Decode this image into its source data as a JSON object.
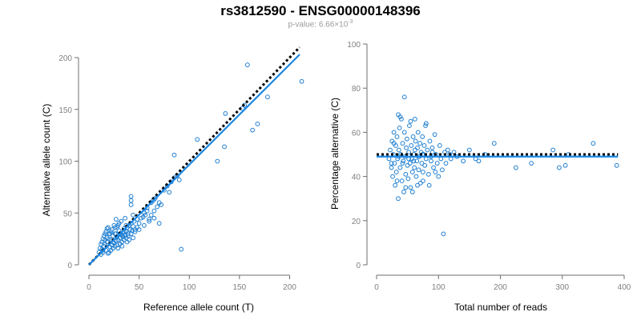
{
  "header": {
    "title": "rs3812590 - ENSG00000148396",
    "pvalue_label": "p-value: 6.66×10",
    "pvalue_exponent": "-3"
  },
  "colors": {
    "points": "#1f7fd1",
    "fit": "#1a87e6",
    "expected": "#000000",
    "axes": "#6e6e6e",
    "ticks": "#808080"
  },
  "chart_data": [
    {
      "type": "scatter",
      "title": "",
      "xlabel": "Reference allele count (T)",
      "ylabel": "Alternative allele count (C)",
      "xlim": [
        0,
        210
      ],
      "ylim": [
        0,
        200
      ],
      "xticks": [
        0,
        50,
        100,
        150,
        200
      ],
      "yticks": [
        0,
        50,
        100,
        150,
        200
      ],
      "fit_line": {
        "x": [
          0,
          210
        ],
        "y": [
          0,
          203
        ]
      },
      "expected_line": {
        "x": [
          0,
          210
        ],
        "y": [
          0,
          210
        ]
      },
      "points": [
        [
          12,
          10
        ],
        [
          13,
          15
        ],
        [
          14,
          12
        ],
        [
          15,
          18
        ],
        [
          16,
          20
        ],
        [
          17,
          14
        ],
        [
          18,
          22
        ],
        [
          19,
          11
        ],
        [
          20,
          25
        ],
        [
          21,
          17
        ],
        [
          22,
          24
        ],
        [
          23,
          19
        ],
        [
          24,
          28
        ],
        [
          25,
          21
        ],
        [
          26,
          30
        ],
        [
          27,
          23
        ],
        [
          28,
          27
        ],
        [
          29,
          16
        ],
        [
          30,
          33
        ],
        [
          31,
          26
        ],
        [
          32,
          29
        ],
        [
          33,
          22
        ],
        [
          34,
          31
        ],
        [
          35,
          35
        ],
        [
          36,
          28
        ],
        [
          37,
          32
        ],
        [
          38,
          36
        ],
        [
          39,
          30
        ],
        [
          40,
          38
        ],
        [
          41,
          34
        ],
        [
          42,
          40
        ],
        [
          43,
          33
        ],
        [
          44,
          37
        ],
        [
          45,
          42
        ],
        [
          12,
          20
        ],
        [
          14,
          25
        ],
        [
          16,
          30
        ],
        [
          18,
          35
        ],
        [
          20,
          12
        ],
        [
          22,
          14
        ],
        [
          24,
          16
        ],
        [
          26,
          18
        ],
        [
          28,
          36
        ],
        [
          30,
          40
        ],
        [
          32,
          42
        ],
        [
          15,
          28
        ],
        [
          17,
          32
        ],
        [
          19,
          36
        ],
        [
          21,
          30
        ],
        [
          23,
          34
        ],
        [
          25,
          38
        ],
        [
          27,
          44
        ],
        [
          29,
          24
        ],
        [
          31,
          20
        ],
        [
          33,
          18
        ],
        [
          35,
          24
        ],
        [
          37,
          26
        ],
        [
          39,
          28
        ],
        [
          13,
          22
        ],
        [
          11,
          16
        ],
        [
          10,
          12
        ],
        [
          18,
          26
        ],
        [
          24,
          22
        ],
        [
          28,
          19
        ],
        [
          34,
          27
        ],
        [
          38,
          22
        ],
        [
          42,
          30
        ],
        [
          46,
          32
        ],
        [
          48,
          36
        ],
        [
          50,
          40
        ],
        [
          52,
          45
        ],
        [
          55,
          50
        ],
        [
          58,
          55
        ],
        [
          60,
          44
        ],
        [
          62,
          48
        ],
        [
          65,
          52
        ],
        [
          68,
          56
        ],
        [
          70,
          60
        ],
        [
          72,
          58
        ],
        [
          42,
          58
        ],
        [
          42,
          62
        ],
        [
          42,
          66
        ],
        [
          50,
          34
        ],
        [
          55,
          38
        ],
        [
          60,
          42
        ],
        [
          56,
          48
        ],
        [
          54,
          46
        ],
        [
          58,
          52
        ],
        [
          62,
          60
        ],
        [
          64,
          62
        ],
        [
          66,
          64
        ],
        [
          70,
          40
        ],
        [
          75,
          72
        ],
        [
          78,
          76
        ],
        [
          80,
          70
        ],
        [
          82,
          80
        ],
        [
          85,
          84
        ],
        [
          88,
          86
        ],
        [
          90,
          82
        ],
        [
          92,
          15
        ],
        [
          65,
          45
        ],
        [
          36,
          45
        ],
        [
          44,
          48
        ],
        [
          48,
          44
        ],
        [
          27,
          30
        ],
        [
          29,
          38
        ],
        [
          31,
          30
        ],
        [
          33,
          28
        ],
        [
          35,
          32
        ],
        [
          37,
          38
        ],
        [
          22,
          32
        ],
        [
          20,
          30
        ],
        [
          16,
          24
        ],
        [
          14,
          14
        ],
        [
          26,
          36
        ],
        [
          40,
          24
        ],
        [
          44,
          26
        ],
        [
          46,
          34
        ],
        [
          85,
          106
        ],
        [
          108,
          121
        ],
        [
          128,
          100
        ],
        [
          135,
          114
        ],
        [
          136,
          146
        ],
        [
          153,
          151
        ],
        [
          155,
          154
        ],
        [
          158,
          193
        ],
        [
          163,
          130
        ],
        [
          168,
          136
        ],
        [
          178,
          162
        ],
        [
          212,
          177
        ]
      ]
    },
    {
      "type": "scatter",
      "title": "",
      "xlabel": "Total number of reads",
      "ylabel": "Percentage alternative (C)",
      "xlim": [
        0,
        400
      ],
      "ylim": [
        0,
        100
      ],
      "xticks": [
        0,
        100,
        200,
        300,
        400
      ],
      "yticks": [
        0,
        20,
        40,
        60,
        80,
        100
      ],
      "fit_line": {
        "x": [
          0,
          390
        ],
        "y": [
          49,
          49
        ]
      },
      "expected_line": {
        "x": [
          0,
          390
        ],
        "y": [
          50,
          50
        ]
      },
      "points": [
        [
          20,
          48
        ],
        [
          22,
          52
        ],
        [
          24,
          44
        ],
        [
          25,
          56
        ],
        [
          26,
          40
        ],
        [
          27,
          50
        ],
        [
          28,
          60
        ],
        [
          29,
          46
        ],
        [
          30,
          36
        ],
        [
          31,
          54
        ],
        [
          32,
          42
        ],
        [
          33,
          58
        ],
        [
          34,
          48
        ],
        [
          35,
          30
        ],
        [
          36,
          52
        ],
        [
          37,
          62
        ],
        [
          38,
          44
        ],
        [
          39,
          50
        ],
        [
          40,
          66
        ],
        [
          41,
          38
        ],
        [
          42,
          55
        ],
        [
          43,
          47
        ],
        [
          44,
          33
        ],
        [
          45,
          60
        ],
        [
          46,
          49
        ],
        [
          47,
          41
        ],
        [
          48,
          53
        ],
        [
          49,
          57
        ],
        [
          50,
          45
        ],
        [
          51,
          39
        ],
        [
          52,
          51
        ],
        [
          53,
          63
        ],
        [
          54,
          46
        ],
        [
          55,
          35
        ],
        [
          56,
          54
        ],
        [
          57,
          48
        ],
        [
          58,
          42
        ],
        [
          59,
          58
        ],
        [
          60,
          50
        ],
        [
          61,
          44
        ],
        [
          62,
          52
        ],
        [
          63,
          56
        ],
        [
          64,
          40
        ],
        [
          65,
          47
        ],
        [
          66,
          53
        ],
        [
          67,
          60
        ],
        [
          68,
          43
        ],
        [
          69,
          49
        ],
        [
          70,
          55
        ],
        [
          71,
          37
        ],
        [
          72,
          51
        ],
        [
          73,
          46
        ],
        [
          74,
          58
        ],
        [
          75,
          42
        ],
        [
          76,
          50
        ],
        [
          77,
          54
        ],
        [
          78,
          45
        ],
        [
          79,
          63
        ],
        [
          80,
          48
        ],
        [
          82,
          52
        ],
        [
          84,
          41
        ],
        [
          86,
          56
        ],
        [
          88,
          47
        ],
        [
          90,
          53
        ],
        [
          92,
          44
        ],
        [
          94,
          59
        ],
        [
          96,
          50
        ],
        [
          98,
          46
        ],
        [
          100,
          40
        ],
        [
          102,
          54
        ],
        [
          104,
          48
        ],
        [
          106,
          43
        ],
        [
          108,
          14
        ],
        [
          110,
          51
        ],
        [
          112,
          46
        ],
        [
          115,
          52
        ],
        [
          118,
          50
        ],
        [
          120,
          48
        ],
        [
          125,
          51
        ],
        [
          130,
          49
        ],
        [
          140,
          47
        ],
        [
          150,
          52
        ],
        [
          160,
          48
        ],
        [
          165,
          47
        ],
        [
          175,
          50
        ],
        [
          190,
          55
        ],
        [
          225,
          44
        ],
        [
          250,
          46
        ],
        [
          285,
          52
        ],
        [
          295,
          44
        ],
        [
          305,
          45
        ],
        [
          310,
          50
        ],
        [
          350,
          55
        ],
        [
          388,
          45
        ],
        [
          45,
          76
        ],
        [
          35,
          68
        ],
        [
          38,
          67
        ],
        [
          55,
          65
        ],
        [
          62,
          66
        ],
        [
          80,
          64
        ],
        [
          28,
          55
        ],
        [
          24,
          46
        ],
        [
          33,
          38
        ],
        [
          47,
          35
        ],
        [
          58,
          33
        ],
        [
          66,
          36
        ],
        [
          75,
          38
        ],
        [
          85,
          36
        ],
        [
          95,
          42
        ],
        [
          42,
          46
        ],
        [
          36,
          49
        ],
        [
          52,
          48
        ],
        [
          68,
          49
        ],
        [
          74,
          50
        ],
        [
          88,
          49
        ],
        [
          90,
          51
        ],
        [
          60,
          47
        ]
      ]
    }
  ]
}
